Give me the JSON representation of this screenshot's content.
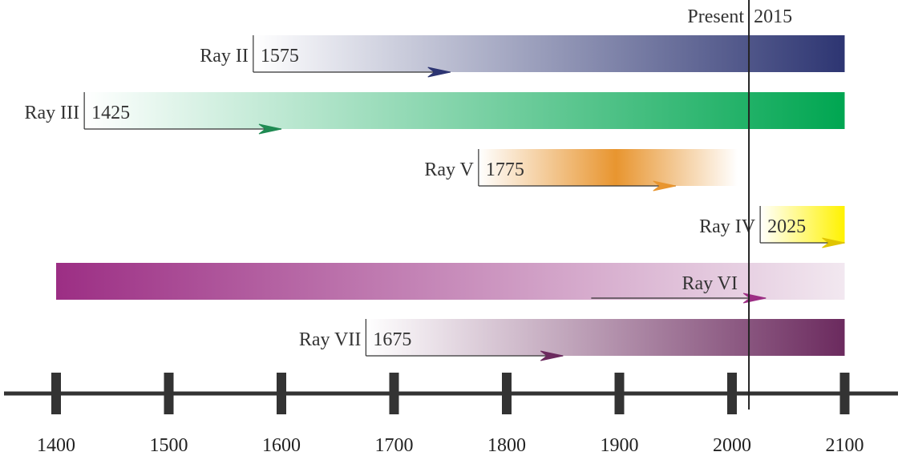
{
  "present": {
    "label": "Present",
    "year_label": "2015",
    "year": 2015
  },
  "axis": {
    "min": 1400,
    "max": 2100,
    "ticks": [
      "1400",
      "1500",
      "1600",
      "1700",
      "1800",
      "1900",
      "2000",
      "2100"
    ]
  },
  "rays": [
    {
      "id": "ray-ii",
      "label": "Ray II",
      "start_label": "1575",
      "start": 1575,
      "end": 2100,
      "arrow_to": 1750,
      "colors": [
        "#ffffff",
        "#2d3572"
      ],
      "gradient": "linear",
      "arrow_color": "#2d3572"
    },
    {
      "id": "ray-iii",
      "label": "Ray III",
      "start_label": "1425",
      "start": 1425,
      "end": 2100,
      "arrow_to": 1600,
      "colors": [
        "#ffffff",
        "#00a651"
      ],
      "gradient": "linear",
      "arrow_color": "#1f8a52"
    },
    {
      "id": "ray-v",
      "label": "Ray V",
      "start_label": "1775",
      "start": 1775,
      "end": 2005,
      "arrow_to": 1950,
      "colors": [
        "#ffffff",
        "#e8952f",
        "#ffffff"
      ],
      "gradient": "peak",
      "arrow_color": "#e8952f"
    },
    {
      "id": "ray-iv",
      "label": "Ray IV",
      "start_label": "2025",
      "start": 2025,
      "end": 2100,
      "arrow_to": 2100,
      "colors": [
        "#ffffff",
        "#fff200"
      ],
      "gradient": "linear",
      "arrow_color": "#e0c400"
    },
    {
      "id": "ray-vi",
      "label": "Ray VI",
      "start_label": "",
      "start": 1400,
      "end": 2100,
      "arrow_to": 2030,
      "arrow_from": 1875,
      "colors": [
        "#9c2e84",
        "#f2e8f0"
      ],
      "gradient": "linear",
      "arrow_color": "#9c2e84"
    },
    {
      "id": "ray-vii",
      "label": "Ray VII",
      "start_label": "1675",
      "start": 1675,
      "end": 2100,
      "arrow_to": 1850,
      "colors": [
        "#ffffff",
        "#6b2a5e"
      ],
      "gradient": "linear",
      "arrow_color": "#6b2a5e"
    }
  ]
}
